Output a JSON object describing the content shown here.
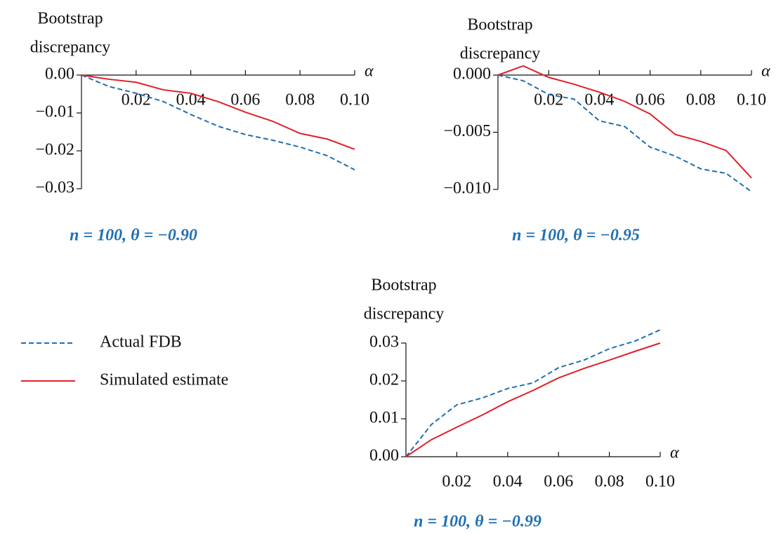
{
  "chart_data": [
    {
      "type": "line",
      "title": "n =  100, θ = −0.90",
      "ylabel": [
        "Bootstrap",
        "discrepancy"
      ],
      "xlabel": "α",
      "x": [
        0,
        0.01,
        0.02,
        0.03,
        0.04,
        0.05,
        0.06,
        0.07,
        0.08,
        0.09,
        0.1
      ],
      "series": [
        {
          "name": "Actual FDB",
          "color": "#1f6fb4",
          "linestyle": "dashed",
          "values": [
            0,
            -0.003,
            -0.0048,
            -0.007,
            -0.0104,
            -0.0135,
            -0.0157,
            -0.0172,
            -0.019,
            -0.0213,
            -0.025
          ]
        },
        {
          "name": "Simulated estimate",
          "color": "#e0202a",
          "linestyle": "solid",
          "values": [
            0,
            -0.0011,
            -0.0019,
            -0.0039,
            -0.0048,
            -0.007,
            -0.0098,
            -0.0122,
            -0.0154,
            -0.0169,
            -0.0196
          ]
        }
      ],
      "xlim": [
        0,
        0.1
      ],
      "xticks": [
        0.02,
        0.04,
        0.06,
        0.08,
        {
          "value": 0.1,
          "label": "0.10"
        }
      ],
      "ylim": [
        -0.03,
        0
      ],
      "yticks": [
        {
          "value": 0,
          "label": "0.00"
        },
        {
          "value": -0.01,
          "label": "−0.01"
        },
        {
          "value": -0.02,
          "label": "−0.02"
        },
        {
          "value": -0.03,
          "label": "−0.03"
        }
      ]
    },
    {
      "type": "line",
      "title": "n =  100, θ = −0.95",
      "ylabel": [
        "Bootstrap",
        "discrepancy"
      ],
      "xlabel": "α",
      "x": [
        0,
        0.01,
        0.02,
        0.03,
        0.04,
        0.05,
        0.06,
        0.07,
        0.08,
        0.09,
        0.1
      ],
      "series": [
        {
          "color": "#1f6fb4",
          "linestyle": "dashed",
          "values": [
            0,
            -0.0005,
            -0.0017,
            -0.0021,
            -0.004,
            -0.0045,
            -0.0063,
            -0.0071,
            -0.0082,
            -0.0086,
            -0.0102
          ]
        },
        {
          "color": "#e0202a",
          "linestyle": "solid",
          "values": [
            0,
            0.0008,
            -0.0002,
            -0.0008,
            -0.0015,
            -0.0023,
            -0.0034,
            -0.0052,
            -0.0058,
            -0.0066,
            -0.009
          ]
        }
      ],
      "xlim": [
        0,
        0.1
      ],
      "xticks": [
        0.02,
        0.04,
        0.06,
        0.08,
        {
          "value": 0.1,
          "label": "0.10"
        }
      ],
      "ylim": [
        -0.01,
        0
      ],
      "yticks": [
        {
          "value": 0,
          "label": "0.000"
        },
        {
          "value": -0.005,
          "label": "−0.005"
        },
        {
          "value": -0.01,
          "label": "−0.010"
        }
      ]
    },
    {
      "type": "line",
      "title": "n =  100, θ = −0.99",
      "ylabel": [
        "Bootstrap",
        "discrepancy"
      ],
      "xlabel": "α",
      "x": [
        0,
        0.01,
        0.02,
        0.03,
        0.04,
        0.05,
        0.06,
        0.07,
        0.08,
        0.09,
        0.1
      ],
      "series": [
        {
          "color": "#1f6fb4",
          "linestyle": "dashed",
          "values": [
            0,
            0.0085,
            0.0137,
            0.0155,
            0.018,
            0.0195,
            0.0235,
            0.0255,
            0.0285,
            0.0305,
            0.0335
          ]
        },
        {
          "color": "#e0202a",
          "linestyle": "solid",
          "values": [
            0,
            0.0045,
            0.0078,
            0.011,
            0.0145,
            0.0175,
            0.0208,
            0.0233,
            0.0255,
            0.0278,
            0.03
          ]
        }
      ],
      "xlim": [
        0,
        0.1
      ],
      "xticks": [
        0.02,
        0.04,
        0.06,
        0.08,
        {
          "value": 0.1,
          "label": "0.10"
        }
      ],
      "ylim": [
        0,
        0.03
      ],
      "yticks": [
        {
          "value": 0,
          "label": "0.00"
        },
        {
          "value": 0.01,
          "label": "0.01"
        },
        {
          "value": 0.02,
          "label": "0.02"
        },
        {
          "value": 0.03,
          "label": "0.03"
        }
      ]
    }
  ]
}
